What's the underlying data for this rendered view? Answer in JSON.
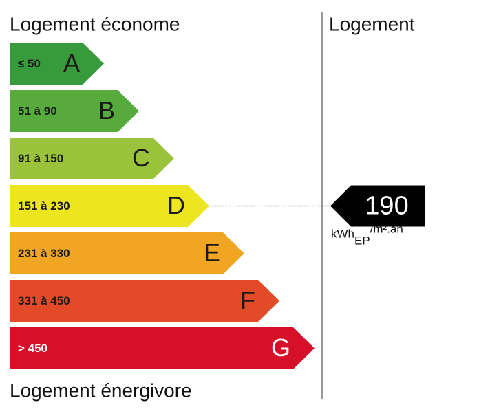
{
  "top_label": "Logement économe",
  "bottom_label": "Logement énergivore",
  "column_header": "Logement",
  "classes": [
    {
      "range": "≤ 50",
      "letter": "A",
      "color": "#379a3b",
      "text_color": "#1a1a1a"
    },
    {
      "range": "51 à 90",
      "letter": "B",
      "color": "#57ab3d",
      "text_color": "#1a1a1a"
    },
    {
      "range": "91 à 150",
      "letter": "C",
      "color": "#9ac33b",
      "text_color": "#1a1a1a"
    },
    {
      "range": "151 à 230",
      "letter": "D",
      "color": "#ede51f",
      "text_color": "#1a1a1a"
    },
    {
      "range": "231 à 330",
      "letter": "E",
      "color": "#f0a523",
      "text_color": "#1a1a1a"
    },
    {
      "range": "331 à 450",
      "letter": "F",
      "color": "#e34a27",
      "text_color": "#1a1a1a"
    },
    {
      "range": "> 450",
      "letter": "G",
      "color": "#d7102a",
      "text_color": "#ffffff"
    }
  ],
  "rating": {
    "value": 190,
    "class": "D",
    "unit": "kWh",
    "unit_sub": "EP",
    "unit_sup": "/m².an"
  }
}
